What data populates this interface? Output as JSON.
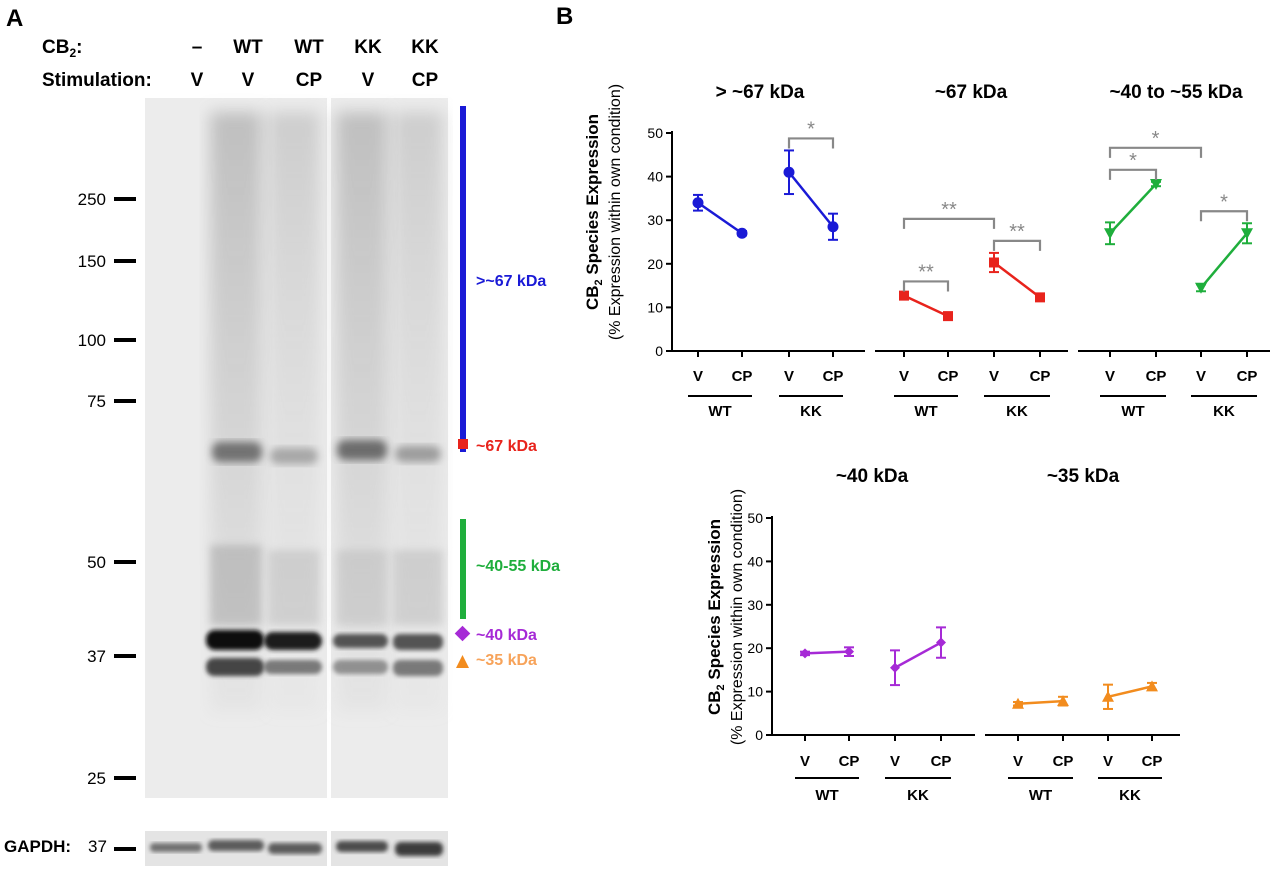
{
  "panels": {
    "a": "A",
    "b": "B"
  },
  "blot": {
    "cb2_label": "CB",
    "cb2_sub": "2",
    "cb2_colon": ":",
    "stimulation_label": "Stimulation:",
    "lanes": [
      {
        "cb2": "–",
        "stim": "V"
      },
      {
        "cb2": "WT",
        "stim": "V"
      },
      {
        "cb2": "WT",
        "stim": "CP"
      },
      {
        "cb2": "KK",
        "stim": "V"
      },
      {
        "cb2": "KK",
        "stim": "CP"
      }
    ],
    "markers": [
      "250",
      "150",
      "100",
      "75",
      "50",
      "37",
      "25"
    ],
    "species": [
      {
        "label": ">~67 kDa",
        "color": "#1a1ad6"
      },
      {
        "label": "~67 kDa",
        "color": "#e8231c"
      },
      {
        "label": "~40-55 kDa",
        "color": "#1fae3c"
      },
      {
        "label": "~40 kDa",
        "color": "#a62ad6"
      },
      {
        "label": "~35 kDa",
        "color": "#f7a35a"
      }
    ],
    "gapdh_label": "GAPDH:",
    "gapdh_marker": "37"
  },
  "axis_labels": {
    "ylabel_main": "CB",
    "ylabel_sub": "2",
    "ylabel_rest": " Species Expression",
    "ylabel_paren": "(% Expression within own condition)"
  },
  "chart_data": [
    {
      "type": "line",
      "title": "> ~67 kDa",
      "color": "#1a1ad6",
      "marker": "circle",
      "ylim": [
        0,
        50
      ],
      "yticks": [
        0,
        10,
        20,
        30,
        40,
        50
      ],
      "x_labels": [
        "V",
        "CP",
        "V",
        "CP"
      ],
      "groups": [
        "WT",
        "KK"
      ],
      "series": [
        {
          "group": "WT",
          "values": [
            34,
            27
          ],
          "errors": [
            1.8,
            0.5
          ]
        },
        {
          "group": "KK",
          "values": [
            41,
            28.5
          ],
          "errors": [
            5,
            3
          ]
        }
      ],
      "significance": [
        {
          "pair": [
            2,
            3
          ],
          "label": "*"
        }
      ]
    },
    {
      "type": "line",
      "title": "~67 kDa",
      "color": "#e8231c",
      "marker": "square",
      "ylim": [
        0,
        50
      ],
      "x_labels": [
        "V",
        "CP",
        "V",
        "CP"
      ],
      "groups": [
        "WT",
        "KK"
      ],
      "series": [
        {
          "group": "WT",
          "values": [
            12.7,
            8
          ],
          "errors": [
            0.5,
            0.7
          ]
        },
        {
          "group": "KK",
          "values": [
            20.3,
            12.3
          ],
          "errors": [
            2.2,
            0.6
          ]
        }
      ],
      "significance": [
        {
          "pair": [
            0,
            1
          ],
          "label": "**"
        },
        {
          "pair": [
            2,
            3
          ],
          "label": "**"
        },
        {
          "pair": [
            0,
            2
          ],
          "label": "**"
        }
      ]
    },
    {
      "type": "line",
      "title": "~40 to ~55 kDa",
      "color": "#1fae3c",
      "marker": "triangle-down",
      "ylim": [
        0,
        50
      ],
      "x_labels": [
        "V",
        "CP",
        "V",
        "CP"
      ],
      "groups": [
        "WT",
        "KK"
      ],
      "series": [
        {
          "group": "WT",
          "values": [
            27,
            38.3
          ],
          "errors": [
            2.5,
            0.5
          ]
        },
        {
          "group": "KK",
          "values": [
            14.5,
            27
          ],
          "errors": [
            0.8,
            2.3
          ]
        }
      ],
      "significance": [
        {
          "pair": [
            0,
            1
          ],
          "label": "*"
        },
        {
          "pair": [
            2,
            3
          ],
          "label": "*"
        },
        {
          "pair": [
            0,
            2
          ],
          "label": "*"
        }
      ]
    },
    {
      "type": "line",
      "title": "~40 kDa",
      "color": "#a62ad6",
      "marker": "diamond",
      "ylim": [
        0,
        50
      ],
      "yticks": [
        0,
        10,
        20,
        30,
        40,
        50
      ],
      "x_labels": [
        "V",
        "CP",
        "V",
        "CP"
      ],
      "groups": [
        "WT",
        "KK"
      ],
      "series": [
        {
          "group": "WT",
          "values": [
            18.8,
            19.2
          ],
          "errors": [
            0.4,
            1
          ]
        },
        {
          "group": "KK",
          "values": [
            15.5,
            21.3
          ],
          "errors": [
            4,
            3.5
          ]
        }
      ],
      "significance": []
    },
    {
      "type": "line",
      "title": "~35 kDa",
      "color": "#f28c1e",
      "marker": "triangle-up",
      "ylim": [
        0,
        50
      ],
      "x_labels": [
        "V",
        "CP",
        "V",
        "CP"
      ],
      "groups": [
        "WT",
        "KK"
      ],
      "series": [
        {
          "group": "WT",
          "values": [
            7.2,
            7.8
          ],
          "errors": [
            0.4,
            1
          ]
        },
        {
          "group": "KK",
          "values": [
            8.8,
            11.2
          ],
          "errors": [
            2.8,
            0.8
          ]
        }
      ],
      "significance": []
    }
  ]
}
